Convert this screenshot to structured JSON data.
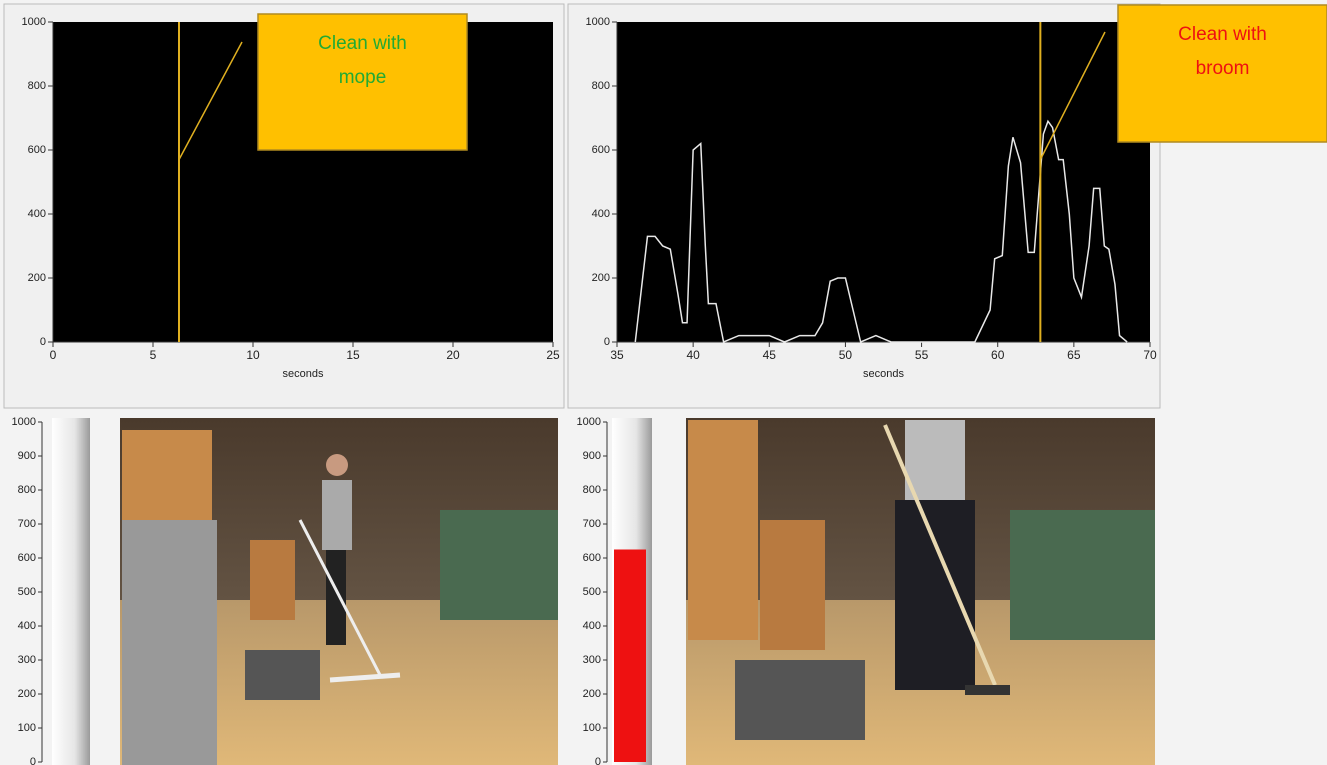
{
  "charts": [
    {
      "type": "line",
      "x_label": "seconds",
      "xlim": [
        0,
        25
      ],
      "xticks": [
        0,
        5,
        10,
        15,
        20,
        25
      ],
      "ylim": [
        0,
        1000
      ],
      "yticks": [
        0,
        200,
        400,
        600,
        800,
        1000
      ],
      "cursor": 6.3,
      "cursor_color": "#e0b020",
      "annotation": {
        "lines": [
          "Clean with",
          "mope"
        ],
        "color": "#22aa33"
      }
    },
    {
      "type": "line",
      "x_label": "seconds",
      "xlim": [
        35,
        70
      ],
      "xticks": [
        35,
        40,
        45,
        50,
        55,
        60,
        65,
        70
      ],
      "ylim": [
        0,
        1000
      ],
      "yticks": [
        0,
        200,
        400,
        600,
        800,
        1000
      ],
      "cursor": 62.8,
      "cursor_color": "#e0b020",
      "annotation": {
        "lines": [
          "Clean with",
          "broom"
        ],
        "color": "#ee1111"
      },
      "series": [
        {
          "color": "#e8e8e8",
          "x": [
            36.2,
            37,
            37.5,
            38,
            38.5,
            39,
            39.3,
            39.6,
            40,
            40.5,
            40.8,
            41,
            41.5,
            42,
            43,
            44,
            45,
            46,
            47,
            48,
            48.5,
            49,
            49.5,
            50,
            50.5,
            51,
            52,
            53,
            58.5,
            59.5,
            59.8,
            60.3,
            60.7,
            61,
            61.5,
            62,
            62.4,
            63,
            63.3,
            63.6,
            64,
            64.3,
            64.7,
            65,
            65.5,
            66,
            66.3,
            66.7,
            67,
            67.3,
            67.7,
            68,
            68.5
          ],
          "values": [
            0,
            330,
            330,
            300,
            290,
            150,
            60,
            60,
            600,
            620,
            300,
            120,
            120,
            0,
            20,
            20,
            20,
            0,
            20,
            20,
            60,
            190,
            200,
            200,
            100,
            0,
            20,
            0,
            0,
            100,
            260,
            270,
            550,
            640,
            560,
            280,
            280,
            650,
            690,
            670,
            570,
            570,
            400,
            200,
            140,
            300,
            480,
            480,
            300,
            290,
            180,
            20,
            0
          ]
        }
      ]
    },
    {
      "type": "gauge",
      "value": 0,
      "color": "#ee1111",
      "ylim": [
        0,
        1000
      ],
      "yticks": [
        0,
        100,
        200,
        300,
        400,
        500,
        600,
        700,
        800,
        900,
        1000
      ]
    },
    {
      "type": "gauge",
      "value": 625,
      "color": "#ee1111",
      "ylim": [
        0,
        1000
      ],
      "yticks": [
        0,
        100,
        200,
        300,
        400,
        500,
        600,
        700,
        800,
        900,
        1000
      ]
    }
  ]
}
